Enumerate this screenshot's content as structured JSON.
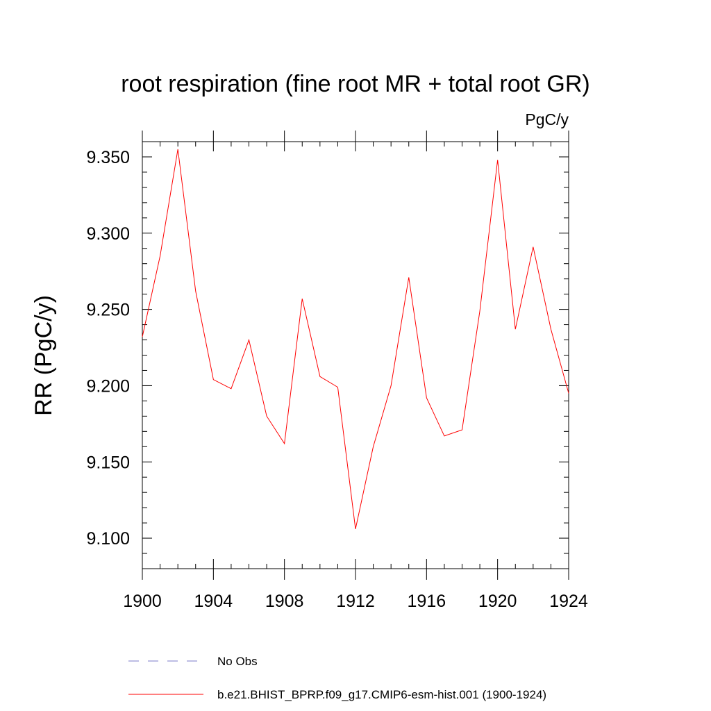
{
  "chart_data": {
    "type": "line",
    "title": "root respiration (fine root MR + total root GR)",
    "units_label": "PgC/y",
    "xlabel": "",
    "ylabel": "RR  (PgC/y)",
    "xlim": [
      1900,
      1924
    ],
    "ylim": [
      9.08,
      9.36
    ],
    "xticks": [
      1900,
      1904,
      1908,
      1912,
      1916,
      1920,
      1924
    ],
    "xtick_labels": [
      "1900",
      "1904",
      "1908",
      "1912",
      "1916",
      "1920",
      "1924"
    ],
    "yticks": [
      9.1,
      9.15,
      9.2,
      9.25,
      9.3,
      9.35
    ],
    "ytick_labels": [
      "9.100",
      "9.150",
      "9.200",
      "9.250",
      "9.300",
      "9.350"
    ],
    "x": [
      1900,
      1901,
      1902,
      1903,
      1904,
      1905,
      1906,
      1907,
      1908,
      1909,
      1910,
      1911,
      1912,
      1913,
      1914,
      1915,
      1916,
      1917,
      1918,
      1919,
      1920,
      1921,
      1922,
      1923,
      1924
    ],
    "series": [
      {
        "name": "b.e21.BHIST_BPRP.f09_g17.CMIP6-esm-hist.001 (1900-1924)",
        "color": "#ff0000",
        "values": [
          9.232,
          9.285,
          9.355,
          9.262,
          9.204,
          9.198,
          9.23,
          9.18,
          9.162,
          9.257,
          9.206,
          9.199,
          9.106,
          9.16,
          9.2,
          9.271,
          9.192,
          9.167,
          9.171,
          9.249,
          9.348,
          9.237,
          9.291,
          9.237,
          9.195
        ]
      }
    ],
    "legend": [
      {
        "label": "No Obs",
        "style": "dashed",
        "color": "#7b7bc8"
      },
      {
        "label": "b.e21.BHIST_BPRP.f09_g17.CMIP6-esm-hist.001 (1900-1924)",
        "style": "solid",
        "color": "#ff0000"
      }
    ]
  }
}
